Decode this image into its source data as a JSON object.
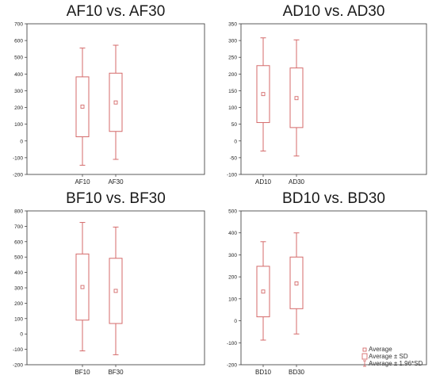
{
  "chart_data": [
    {
      "type": "box",
      "title": "AF10 vs. AF30",
      "categories": [
        "AF10",
        "AF30"
      ],
      "ylim": [
        -200,
        700
      ],
      "yticks": [
        -200,
        -100,
        0,
        100,
        200,
        300,
        400,
        500,
        600,
        700
      ],
      "series": [
        {
          "average": 205,
          "sd_low": 25,
          "sd_high": 383,
          "ci_low": -145,
          "ci_high": 555
        },
        {
          "average": 230,
          "sd_low": 57,
          "sd_high": 405,
          "ci_low": -110,
          "ci_high": 572
        }
      ]
    },
    {
      "type": "box",
      "title": "AD10 vs. AD30",
      "categories": [
        "AD10",
        "AD30"
      ],
      "ylim": [
        -100,
        350
      ],
      "yticks": [
        -100,
        -50,
        0,
        50,
        100,
        150,
        200,
        250,
        300,
        350
      ],
      "series": [
        {
          "average": 140,
          "sd_low": 55,
          "sd_high": 225,
          "ci_low": -30,
          "ci_high": 308
        },
        {
          "average": 128,
          "sd_low": 40,
          "sd_high": 218,
          "ci_low": -45,
          "ci_high": 302
        }
      ]
    },
    {
      "type": "box",
      "title": "BF10 vs. BF30",
      "categories": [
        "BF10",
        "BF30"
      ],
      "ylim": [
        -200,
        800
      ],
      "yticks": [
        -200,
        -100,
        0,
        100,
        200,
        300,
        400,
        500,
        600,
        700,
        800
      ],
      "series": [
        {
          "average": 305,
          "sd_low": 90,
          "sd_high": 520,
          "ci_low": -110,
          "ci_high": 725
        },
        {
          "average": 280,
          "sd_low": 68,
          "sd_high": 492,
          "ci_low": -135,
          "ci_high": 695
        }
      ]
    },
    {
      "type": "box",
      "title": "BD10 vs. BD30",
      "categories": [
        "BD10",
        "BD30"
      ],
      "ylim": [
        -200,
        500
      ],
      "yticks": [
        -200,
        -100,
        0,
        100,
        200,
        300,
        400,
        500
      ],
      "series": [
        {
          "average": 133,
          "sd_low": 18,
          "sd_high": 248,
          "ci_low": -88,
          "ci_high": 360
        },
        {
          "average": 170,
          "sd_low": 55,
          "sd_high": 290,
          "ci_low": -60,
          "ci_high": 400
        }
      ]
    }
  ],
  "legend": {
    "items": [
      "Average",
      "Average ± SD",
      "Average ± 1.96*SD"
    ],
    "placement": "bottom-right"
  },
  "colors": {
    "series": "#d46a6a",
    "axis": "#333333",
    "text": "#1a1a1a"
  }
}
